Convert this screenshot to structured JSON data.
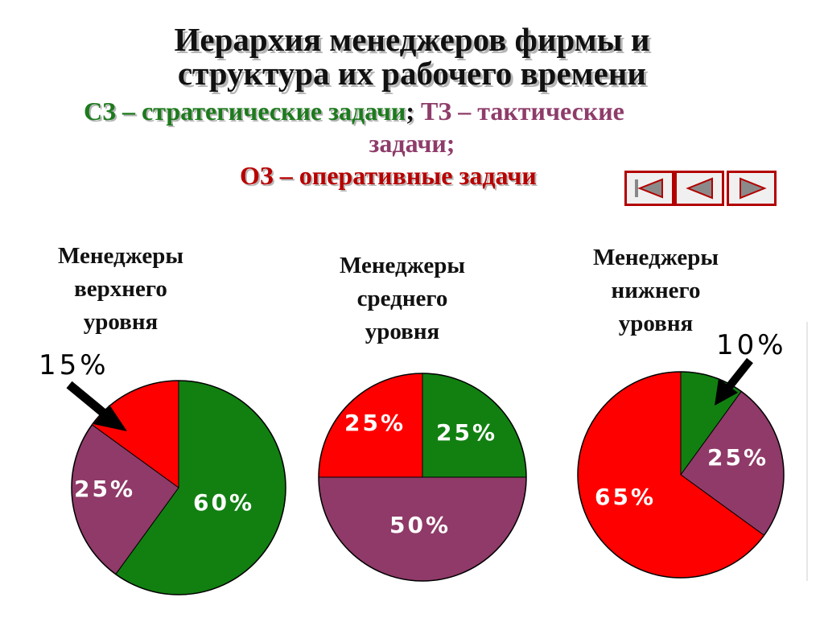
{
  "title": {
    "line1": "Иерархия менеджеров фирмы и",
    "line2": "структура их рабочего времени"
  },
  "legend": {
    "strategic": "СЗ – стратегические задачи",
    "separator": ";",
    "tactical_a": "ТЗ – тактические",
    "tactical_b": "задачи;",
    "operational": "ОЗ – оперативные задачи"
  },
  "colors": {
    "strategic": "#118011",
    "tactical": "#8f3a68",
    "operational": "#ff0000"
  },
  "nav": [
    {
      "name": "first-slide-button",
      "icon": "skip-to-start-icon"
    },
    {
      "name": "previous-slide-button",
      "icon": "triangle-left-icon"
    },
    {
      "name": "next-slide-button",
      "icon": "triangle-right-icon"
    }
  ],
  "chart_data": [
    {
      "type": "pie",
      "title": "Менеджеры верхнего уровня",
      "title_lines": [
        "Менеджеры",
        "верхнего",
        "уровня"
      ],
      "series": [
        {
          "name": "СЗ",
          "value": 60,
          "label": "60%"
        },
        {
          "name": "ТЗ",
          "value": 25,
          "label": "25%"
        },
        {
          "name": "ОЗ",
          "value": 15,
          "label": "15%"
        }
      ]
    },
    {
      "type": "pie",
      "title": "Менеджеры среднего уровня",
      "title_lines": [
        "Менеджеры",
        "среднего",
        "уровня"
      ],
      "series": [
        {
          "name": "СЗ",
          "value": 25,
          "label": "25%"
        },
        {
          "name": "ТЗ",
          "value": 50,
          "label": "50%"
        },
        {
          "name": "ОЗ",
          "value": 25,
          "label": "25%"
        }
      ]
    },
    {
      "type": "pie",
      "title": "Менеджеры нижнего уровня",
      "title_lines": [
        "Менеджеры",
        "нижнего",
        "уровня"
      ],
      "series": [
        {
          "name": "СЗ",
          "value": 10,
          "label": "10%"
        },
        {
          "name": "ТЗ",
          "value": 25,
          "label": "25%"
        },
        {
          "name": "ОЗ",
          "value": 65,
          "label": "65%"
        }
      ]
    }
  ]
}
